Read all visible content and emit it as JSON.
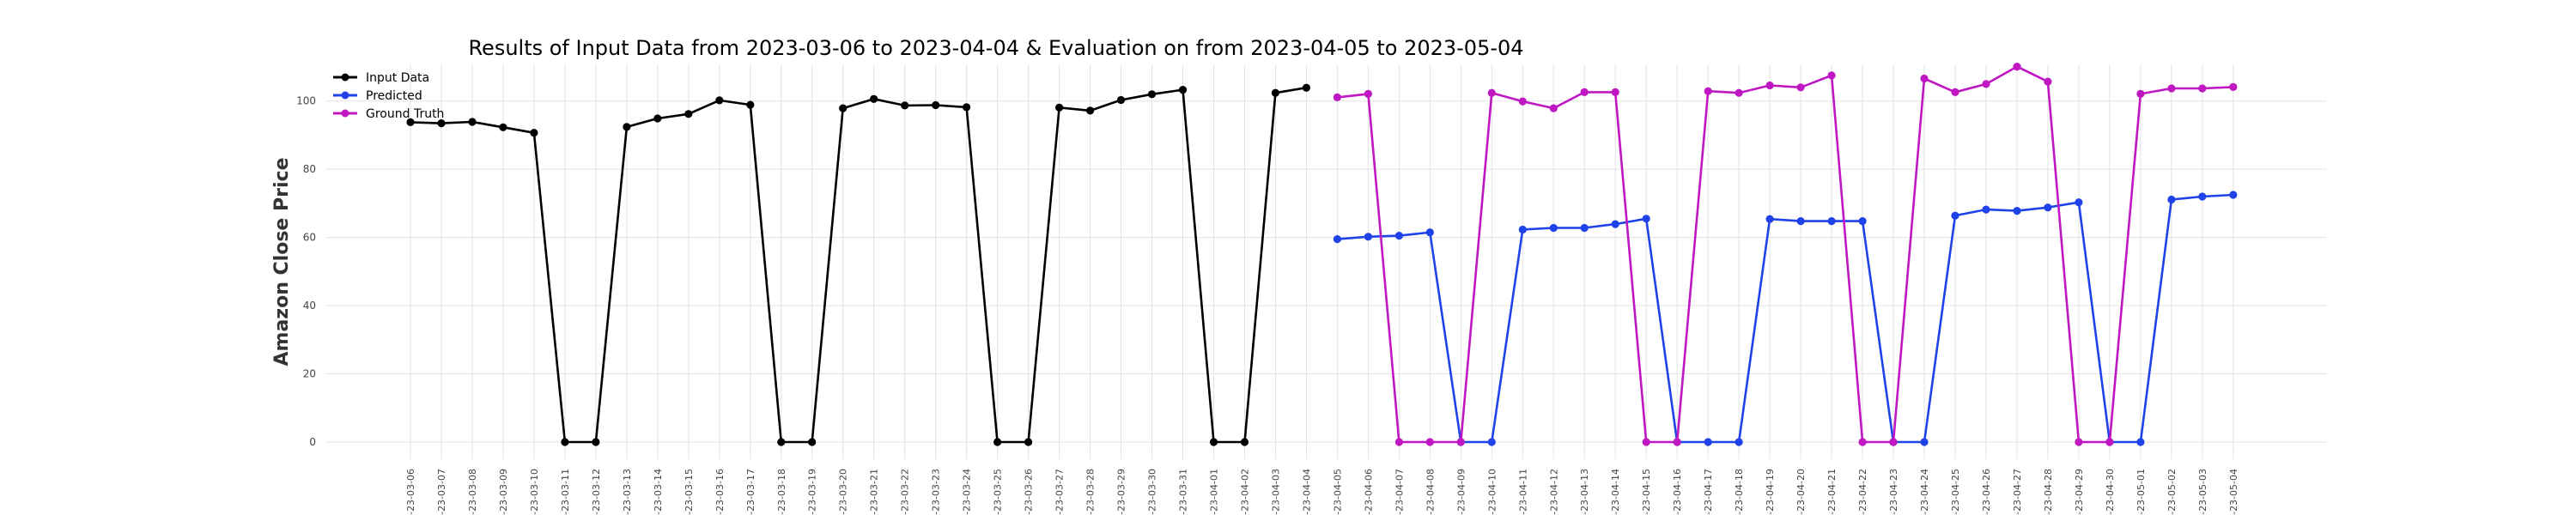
{
  "chart_data": {
    "type": "line",
    "title": "Results of Input Data from 2023-03-06 to 2023-04-04 & Evaluation on from 2023-04-05 to 2023-05-04",
    "xlabel": "",
    "ylabel": "Amazon Close Price",
    "ylim": [
      0,
      110
    ],
    "y_ticks": [
      "0",
      "20",
      "40",
      "60",
      "80",
      "100"
    ],
    "grid": true,
    "legend_position": "top-left",
    "x_tick_labels": [
      "-23-03-06",
      "-23-03-07",
      "-23-03-08",
      "-23-03-09",
      "-23-03-10",
      "-23-03-11",
      "-23-03-12",
      "-23-03-13",
      "-23-03-14",
      "-23-03-15",
      "-23-03-16",
      "-23-03-17",
      "-23-03-18",
      "-23-03-19",
      "-23-03-20",
      "-23-03-21",
      "-23-03-22",
      "-23-03-23",
      "-23-03-24",
      "-23-03-25",
      "-23-03-26",
      "-23-03-27",
      "-23-03-28",
      "-23-03-29",
      "-23-03-30",
      "-23-03-31",
      "-23-04-01",
      "-23-04-02",
      "-23-04-03",
      "-23-04-04",
      "-23-04-05",
      "-23-04-06",
      "-23-04-07",
      "-23-04-08",
      "-23-04-09",
      "-23-04-10",
      "-23-04-11",
      "-23-04-12",
      "-23-04-13",
      "-23-04-14",
      "-23-04-15",
      "-23-04-16",
      "-23-04-17",
      "-23-04-18",
      "-23-04-19",
      "-23-04-20",
      "-23-04-21",
      "-23-04-22",
      "-23-04-23",
      "-23-04-24",
      "-23-04-25",
      "-23-04-26",
      "-23-04-27",
      "-23-04-28",
      "-23-04-29",
      "-23-04-30",
      "-23-05-01",
      "-23-05-02",
      "-23-05-03",
      "-23-05-04"
    ],
    "series": [
      {
        "name": "Input Data",
        "color": "#000000",
        "start_index": 0,
        "values": [
          93.8,
          93.5,
          93.9,
          92.3,
          90.7,
          0,
          0,
          92.4,
          94.9,
          96.2,
          100.2,
          98.9,
          0,
          0,
          97.9,
          100.6,
          98.7,
          98.8,
          98.2,
          0,
          0,
          98.1,
          97.2,
          100.3,
          102.0,
          103.3,
          0,
          0,
          102.4,
          103.9
        ]
      },
      {
        "name": "Predicted",
        "color": "#1f43e8",
        "start_index": 30,
        "values": [
          59.5,
          60.2,
          60.5,
          61.5,
          0,
          0,
          62.3,
          62.8,
          62.8,
          63.9,
          65.5,
          0,
          0,
          0,
          65.4,
          64.8,
          64.8,
          64.8,
          0,
          0,
          66.4,
          68.2,
          67.8,
          68.8,
          70.3,
          0,
          0,
          71.1,
          72.0,
          72.5
        ]
      },
      {
        "name": "Ground Truth",
        "color": "#bf17c2",
        "start_index": 30,
        "values": [
          101.1,
          102.1,
          0,
          0,
          0,
          102.4,
          99.9,
          97.9,
          102.6,
          102.6,
          0,
          0,
          102.9,
          102.4,
          104.6,
          104.0,
          107.5,
          0,
          0,
          106.6,
          102.6,
          105.0,
          110.1,
          105.7,
          0,
          0,
          102.1,
          103.7,
          103.7,
          104.1
        ]
      }
    ]
  }
}
